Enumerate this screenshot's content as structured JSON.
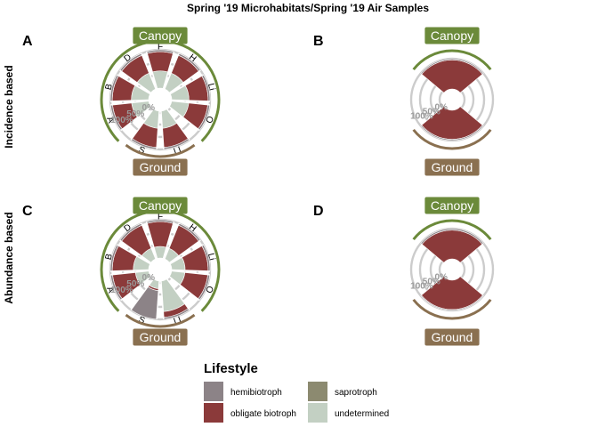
{
  "title": "Spring '19 Microhabitats/Spring '19 Air Samples",
  "row_labels": [
    "Incidence based",
    "Abundance based"
  ],
  "canopy_label": "Canopy",
  "ground_label": "Ground",
  "colors": {
    "hemibiotroph": "#8c8387",
    "obligate biotroph": "#8b3a3a",
    "saprotroph": "#8c8a70",
    "undetermined": "#c3d0c3",
    "canopy": "#6b8a3a",
    "ground": "#8a7050",
    "ring": "#cccccc"
  },
  "legend": {
    "title": "Lifestyle",
    "items": [
      "hemibiotroph",
      "saprotroph",
      "obligate biotroph",
      "undetermined"
    ]
  },
  "chart_data": [
    {
      "panel": "A",
      "type": "radial-stacked-bar",
      "measure": "Incidence based",
      "axis_ticks": [
        "0%",
        "50%",
        "100%"
      ],
      "categories": [
        "A",
        "B",
        "D",
        "F",
        "H",
        "Li",
        "O",
        "LL",
        "S"
      ],
      "canopy_categories": [
        "A",
        "B",
        "D",
        "F",
        "H",
        "Li",
        "O"
      ],
      "ground_categories": [
        "LL",
        "S"
      ],
      "series": [
        {
          "name": "undetermined",
          "values": [
            45,
            45,
            45,
            45,
            45,
            45,
            45,
            45,
            45
          ]
        },
        {
          "name": "obligate biotroph",
          "values": [
            50,
            50,
            50,
            50,
            50,
            50,
            50,
            50,
            50
          ]
        },
        {
          "name": "saprotroph",
          "values": [
            0,
            0,
            0,
            0,
            0,
            0,
            0,
            0,
            0
          ]
        },
        {
          "name": "hemibiotroph",
          "values": [
            5,
            5,
            5,
            5,
            5,
            5,
            5,
            5,
            5
          ]
        }
      ]
    },
    {
      "panel": "B",
      "type": "radial-stacked-bar",
      "measure": "Incidence based",
      "axis_ticks": [
        "0%",
        "50%",
        "100%"
      ],
      "categories": [
        "Canopy",
        "Ground"
      ],
      "canopy_categories": [
        "Canopy"
      ],
      "ground_categories": [
        "Ground"
      ],
      "series": [
        {
          "name": "undetermined",
          "values": [
            0,
            0
          ]
        },
        {
          "name": "obligate biotroph",
          "values": [
            96,
            96
          ]
        },
        {
          "name": "saprotroph",
          "values": [
            0,
            0
          ]
        },
        {
          "name": "hemibiotroph",
          "values": [
            4,
            4
          ]
        }
      ]
    },
    {
      "panel": "C",
      "type": "radial-stacked-bar",
      "measure": "Abundance based",
      "axis_ticks": [
        "0%",
        "50%",
        "100%"
      ],
      "categories": [
        "A",
        "B",
        "D",
        "F",
        "H",
        "Li",
        "O",
        "LL",
        "S"
      ],
      "canopy_categories": [
        "A",
        "B",
        "D",
        "F",
        "H",
        "Li",
        "O"
      ],
      "ground_categories": [
        "LL",
        "S"
      ],
      "series": [
        {
          "name": "undetermined",
          "values": [
            35,
            40,
            30,
            30,
            30,
            35,
            35,
            80,
            20
          ]
        },
        {
          "name": "obligate biotroph",
          "values": [
            60,
            55,
            65,
            65,
            65,
            60,
            60,
            15,
            5
          ]
        },
        {
          "name": "saprotroph",
          "values": [
            0,
            0,
            0,
            0,
            0,
            0,
            0,
            0,
            0
          ]
        },
        {
          "name": "hemibiotroph",
          "values": [
            5,
            5,
            5,
            5,
            5,
            5,
            5,
            5,
            75
          ]
        }
      ]
    },
    {
      "panel": "D",
      "type": "radial-stacked-bar",
      "measure": "Abundance based",
      "axis_ticks": [
        "0%",
        "50%",
        "100%"
      ],
      "categories": [
        "Canopy",
        "Ground"
      ],
      "canopy_categories": [
        "Canopy"
      ],
      "ground_categories": [
        "Ground"
      ],
      "series": [
        {
          "name": "undetermined",
          "values": [
            0,
            0
          ]
        },
        {
          "name": "obligate biotroph",
          "values": [
            95,
            97
          ]
        },
        {
          "name": "saprotroph",
          "values": [
            0,
            0
          ]
        },
        {
          "name": "hemibiotroph",
          "values": [
            5,
            3
          ]
        }
      ]
    }
  ]
}
